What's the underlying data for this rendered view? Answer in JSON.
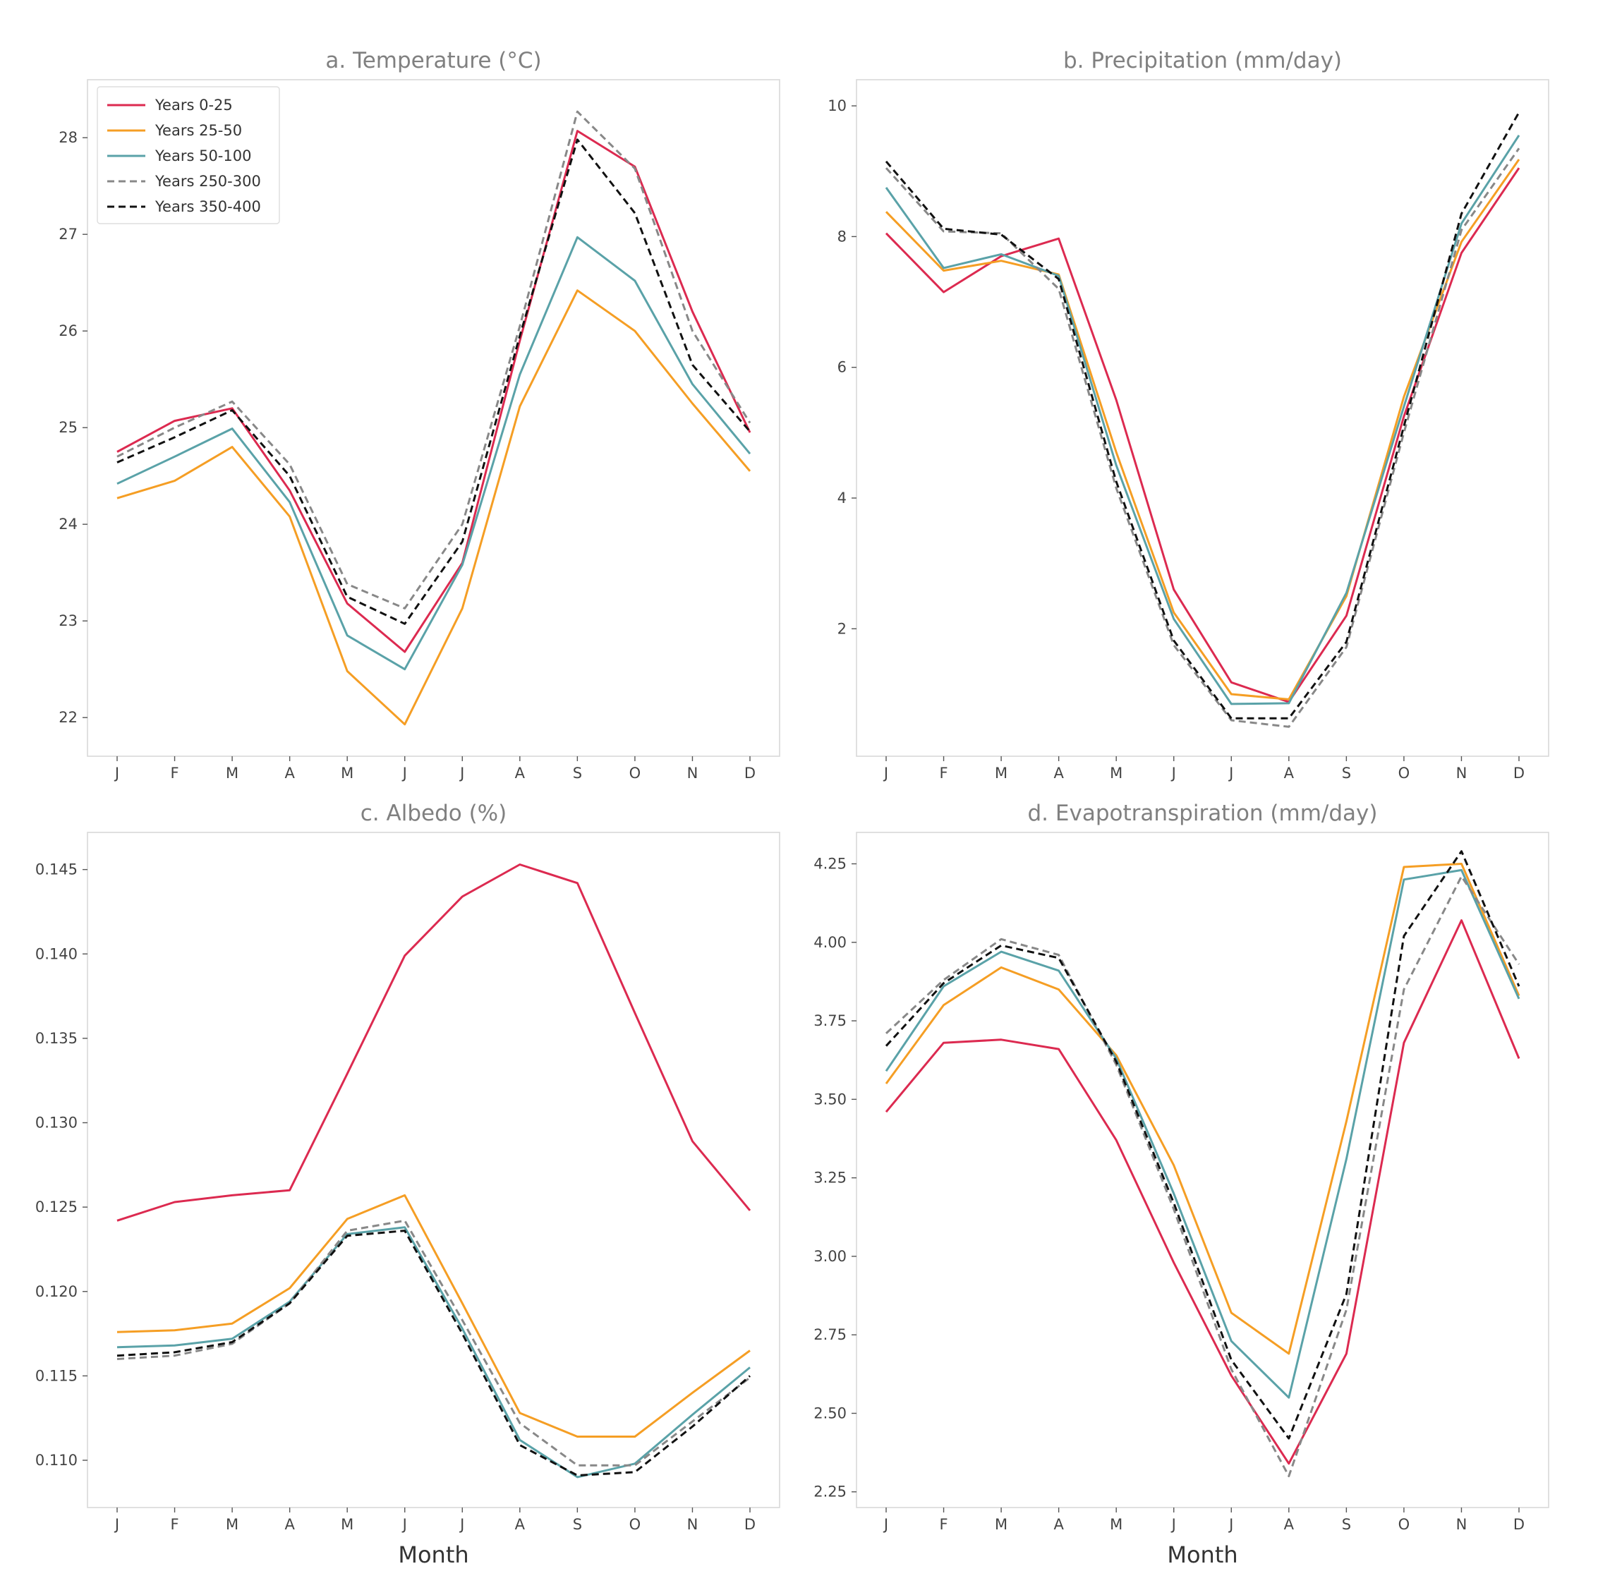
{
  "months": [
    "J",
    "F",
    "M",
    "A",
    "M",
    "J",
    "J",
    "A",
    "S",
    "O",
    "N",
    "D"
  ],
  "series_style": [
    {
      "name": "Years 0-25",
      "color": "#dc2a50",
      "dash": "none"
    },
    {
      "name": "Years 25-50",
      "color": "#f59e24",
      "dash": "none"
    },
    {
      "name": "Years 50-100",
      "color": "#5aa2a8",
      "dash": "none"
    },
    {
      "name": "Years 250-300",
      "color": "#888888",
      "dash": "10,6"
    },
    {
      "name": "Years 350-400",
      "color": "#111111",
      "dash": "10,6"
    }
  ],
  "chart_data": [
    {
      "id": "a",
      "type": "line",
      "title": "a. Temperature (°C)",
      "xlabel": "",
      "ylabel": "",
      "categories": [
        "J",
        "F",
        "M",
        "A",
        "M",
        "J",
        "J",
        "A",
        "S",
        "O",
        "N",
        "D"
      ],
      "ylim": [
        21.6,
        28.6
      ],
      "yticks": [
        22,
        23,
        24,
        25,
        26,
        27,
        28
      ],
      "ytick_labels": [
        "22",
        "23",
        "24",
        "25",
        "26",
        "27",
        "28"
      ],
      "legend": "top-left",
      "series": [
        {
          "name": "Years 0-25",
          "values": [
            24.75,
            25.07,
            25.2,
            24.35,
            23.18,
            22.68,
            23.6,
            25.9,
            28.07,
            27.7,
            26.2,
            24.95
          ]
        },
        {
          "name": "Years 25-50",
          "values": [
            24.27,
            24.45,
            24.8,
            24.08,
            22.48,
            21.93,
            23.13,
            25.22,
            26.42,
            26.0,
            25.25,
            24.55
          ]
        },
        {
          "name": "Years 50-100",
          "values": [
            24.42,
            24.7,
            24.99,
            24.23,
            22.85,
            22.5,
            23.58,
            25.55,
            26.97,
            26.52,
            25.45,
            24.73
          ]
        },
        {
          "name": "Years 250-300",
          "values": [
            24.7,
            25.0,
            25.27,
            24.62,
            23.38,
            23.13,
            24.0,
            26.05,
            28.27,
            27.68,
            26.0,
            25.05
          ]
        },
        {
          "name": "Years 350-400",
          "values": [
            24.64,
            24.9,
            25.18,
            24.5,
            23.25,
            22.97,
            23.82,
            25.95,
            27.98,
            27.22,
            25.65,
            24.96
          ]
        }
      ]
    },
    {
      "id": "b",
      "type": "line",
      "title": "b. Precipitation (mm/day)",
      "xlabel": "",
      "ylabel": "",
      "categories": [
        "J",
        "F",
        "M",
        "A",
        "M",
        "J",
        "J",
        "A",
        "S",
        "O",
        "N",
        "D"
      ],
      "ylim": [
        0.05,
        10.4
      ],
      "yticks": [
        2,
        4,
        6,
        8,
        10
      ],
      "ytick_labels": [
        "2",
        "4",
        "6",
        "8",
        "10"
      ],
      "series": [
        {
          "name": "Years 0-25",
          "values": [
            8.05,
            7.15,
            7.7,
            7.97,
            5.5,
            2.6,
            1.18,
            0.88,
            2.2,
            5.25,
            7.75,
            9.05
          ]
        },
        {
          "name": "Years 25-50",
          "values": [
            8.38,
            7.48,
            7.63,
            7.42,
            4.7,
            2.25,
            1.0,
            0.92,
            2.5,
            5.55,
            7.92,
            9.18
          ]
        },
        {
          "name": "Years 50-100",
          "values": [
            8.75,
            7.52,
            7.73,
            7.4,
            4.5,
            2.15,
            0.85,
            0.86,
            2.55,
            5.4,
            8.2,
            9.55
          ]
        },
        {
          "name": "Years 250-300",
          "values": [
            9.05,
            8.08,
            8.05,
            7.2,
            4.15,
            1.75,
            0.6,
            0.5,
            1.72,
            5.0,
            8.1,
            9.35
          ]
        },
        {
          "name": "Years 350-400",
          "values": [
            9.15,
            8.12,
            8.03,
            7.35,
            4.25,
            1.82,
            0.63,
            0.63,
            1.8,
            5.1,
            8.35,
            9.9
          ]
        }
      ]
    },
    {
      "id": "c",
      "type": "line",
      "title": "c. Albedo (%)",
      "xlabel": "Month",
      "ylabel": "",
      "categories": [
        "J",
        "F",
        "M",
        "A",
        "M",
        "J",
        "J",
        "A",
        "S",
        "O",
        "N",
        "D"
      ],
      "ylim": [
        0.1072,
        0.1472
      ],
      "yticks": [
        0.11,
        0.115,
        0.12,
        0.125,
        0.13,
        0.135,
        0.14,
        0.145
      ],
      "ytick_labels": [
        "0.110",
        "0.115",
        "0.120",
        "0.125",
        "0.130",
        "0.135",
        "0.140",
        "0.145"
      ],
      "series": [
        {
          "name": "Years 0-25",
          "values": [
            0.1242,
            0.1253,
            0.1257,
            0.126,
            0.1329,
            0.1399,
            0.1434,
            0.1453,
            0.1442,
            0.1365,
            0.1289,
            0.1248
          ]
        },
        {
          "name": "Years 25-50",
          "values": [
            0.1176,
            0.1177,
            0.1181,
            0.1202,
            0.1243,
            0.1257,
            0.1193,
            0.1128,
            0.1114,
            0.1114,
            0.114,
            0.1165
          ]
        },
        {
          "name": "Years 50-100",
          "values": [
            0.1167,
            0.1168,
            0.1172,
            0.1194,
            0.1234,
            0.1238,
            0.1178,
            0.1112,
            0.109,
            0.1098,
            0.1127,
            0.1155
          ]
        },
        {
          "name": "Years 250-300",
          "values": [
            0.116,
            0.1162,
            0.1169,
            0.1193,
            0.1236,
            0.1242,
            0.1183,
            0.1122,
            0.1097,
            0.1097,
            0.1123,
            0.1149
          ]
        },
        {
          "name": "Years 350-400",
          "values": [
            0.1162,
            0.1164,
            0.117,
            0.1193,
            0.1233,
            0.1236,
            0.1175,
            0.1109,
            0.1091,
            0.1093,
            0.112,
            0.115
          ]
        }
      ]
    },
    {
      "id": "d",
      "type": "line",
      "title": "d. Evapotranspiration (mm/day)",
      "xlabel": "Month",
      "ylabel": "",
      "categories": [
        "J",
        "F",
        "M",
        "A",
        "M",
        "J",
        "J",
        "A",
        "S",
        "O",
        "N",
        "D"
      ],
      "ylim": [
        2.2,
        4.35
      ],
      "yticks": [
        2.25,
        2.5,
        2.75,
        3.0,
        3.25,
        3.5,
        3.75,
        4.0,
        4.25
      ],
      "ytick_labels": [
        "2.25",
        "2.50",
        "2.75",
        "3.00",
        "3.25",
        "3.50",
        "3.75",
        "4.00",
        "4.25"
      ],
      "series": [
        {
          "name": "Years 0-25",
          "values": [
            3.46,
            3.68,
            3.69,
            3.66,
            3.37,
            2.98,
            2.62,
            2.34,
            2.69,
            3.68,
            4.07,
            3.63
          ]
        },
        {
          "name": "Years 25-50",
          "values": [
            3.55,
            3.8,
            3.92,
            3.85,
            3.64,
            3.29,
            2.82,
            2.69,
            3.43,
            4.24,
            4.25,
            3.83
          ]
        },
        {
          "name": "Years 50-100",
          "values": [
            3.59,
            3.86,
            3.97,
            3.91,
            3.63,
            3.2,
            2.73,
            2.55,
            3.31,
            4.2,
            4.23,
            3.82
          ]
        },
        {
          "name": "Years 250-300",
          "values": [
            3.71,
            3.88,
            4.01,
            3.96,
            3.61,
            3.15,
            2.64,
            2.3,
            2.83,
            3.85,
            4.21,
            3.93
          ]
        },
        {
          "name": "Years 350-400",
          "values": [
            3.67,
            3.87,
            3.99,
            3.95,
            3.62,
            3.17,
            2.67,
            2.42,
            2.88,
            4.02,
            4.29,
            3.86
          ]
        }
      ]
    }
  ]
}
